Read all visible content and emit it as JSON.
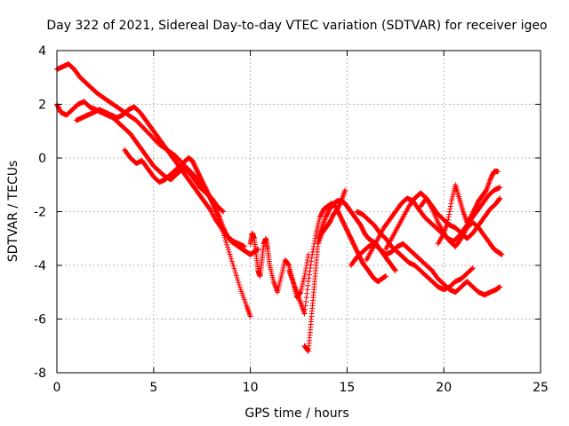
{
  "chart_data": {
    "type": "scatter",
    "title": "Day 322 of 2021, Sidereal Day-to-day VTEC variation (SDTVAR) for receiver igeo",
    "xlabel": "GPS time / hours",
    "ylabel": "SDTVAR / TECUs",
    "xlim": [
      0,
      25
    ],
    "ylim": [
      -8,
      4
    ],
    "xticks": [
      0,
      5,
      10,
      15,
      20,
      25
    ],
    "yticks": [
      -8,
      -6,
      -4,
      -2,
      0,
      2,
      4
    ],
    "grid": true,
    "marker": "plus",
    "color": "#ff0000",
    "series": [
      {
        "x": [
          0.0,
          0.3,
          0.6,
          0.9,
          1.2,
          1.5,
          1.8,
          2.1,
          2.5,
          2.9,
          3.3,
          3.7,
          4.1,
          4.5,
          4.9,
          5.3,
          5.7,
          6.1,
          6.5,
          6.9,
          7.3,
          7.7,
          8.0,
          8.3,
          8.6,
          8.9,
          9.2,
          9.5,
          9.8,
          10.0
        ],
        "y": [
          3.3,
          3.4,
          3.5,
          3.3,
          3.0,
          2.8,
          2.6,
          2.4,
          2.2,
          2.0,
          1.8,
          1.6,
          1.4,
          1.1,
          0.8,
          0.5,
          0.3,
          0.1,
          -0.2,
          -0.5,
          -0.8,
          -1.2,
          -1.6,
          -2.2,
          -2.8,
          -3.5,
          -4.2,
          -4.9,
          -5.5,
          -5.9
        ]
      },
      {
        "x": [
          0.0,
          0.2,
          0.5,
          0.8,
          1.1,
          1.4,
          1.7,
          2.0,
          2.3,
          2.6,
          2.9,
          3.2,
          3.5,
          3.8,
          4.1,
          4.4,
          4.7,
          5.0,
          5.3,
          5.6,
          5.9,
          6.2,
          6.5,
          6.8,
          7.1,
          7.4,
          7.7,
          8.0,
          8.3,
          8.6
        ],
        "y": [
          2.0,
          1.7,
          1.6,
          1.8,
          2.0,
          2.1,
          1.9,
          1.8,
          1.7,
          1.6,
          1.5,
          1.3,
          1.1,
          0.9,
          0.6,
          0.3,
          0.0,
          -0.3,
          -0.5,
          -0.7,
          -0.8,
          -0.6,
          -0.4,
          -0.5,
          -0.8,
          -1.1,
          -1.3,
          -1.5,
          -1.8,
          -2.0
        ]
      },
      {
        "x": [
          1.0,
          1.3,
          1.6,
          1.9,
          2.2,
          2.5,
          2.8,
          3.1,
          3.4,
          3.7,
          4.0,
          4.3,
          4.6,
          4.9,
          5.2,
          5.5,
          5.8,
          6.1,
          6.4,
          6.7,
          7.0,
          7.3,
          7.6,
          7.9,
          8.2,
          8.5,
          8.8,
          9.1,
          9.4,
          9.7
        ],
        "y": [
          1.4,
          1.5,
          1.6,
          1.7,
          1.8,
          1.7,
          1.6,
          1.5,
          1.6,
          1.8,
          1.9,
          1.7,
          1.4,
          1.1,
          0.8,
          0.5,
          0.2,
          -0.1,
          -0.4,
          -0.7,
          -1.0,
          -1.3,
          -1.6,
          -1.9,
          -2.3,
          -2.6,
          -2.9,
          -3.1,
          -3.2,
          -3.3
        ]
      },
      {
        "x": [
          3.5,
          3.8,
          4.1,
          4.4,
          4.7,
          5.0,
          5.3,
          5.6,
          5.9,
          6.2,
          6.5,
          6.8,
          7.0,
          7.2,
          7.4,
          7.6,
          7.8,
          8.0,
          8.2,
          8.4,
          8.6,
          8.8,
          9.0,
          9.2,
          9.4,
          9.6,
          9.8,
          10.0,
          10.2,
          10.4
        ],
        "y": [
          0.3,
          0.0,
          -0.2,
          -0.1,
          -0.4,
          -0.7,
          -0.9,
          -0.8,
          -0.6,
          -0.4,
          -0.2,
          0.0,
          -0.1,
          -0.4,
          -0.7,
          -1.0,
          -1.3,
          -1.6,
          -1.9,
          -2.2,
          -2.6,
          -2.9,
          -3.1,
          -3.2,
          -3.3,
          -3.4,
          -3.5,
          -3.6,
          -3.5,
          -3.4
        ]
      },
      {
        "x": [
          10.0,
          10.1,
          10.2,
          10.3,
          10.4,
          10.5,
          10.6,
          10.7,
          10.8,
          10.9,
          11.0,
          11.2,
          11.4,
          11.6,
          11.8,
          12.0,
          12.2,
          12.4,
          12.6,
          12.8,
          13.0
        ],
        "y": [
          -3.2,
          -2.8,
          -3.0,
          -3.6,
          -4.2,
          -4.4,
          -3.8,
          -3.2,
          -3.0,
          -3.4,
          -4.0,
          -4.6,
          -5.0,
          -4.4,
          -3.8,
          -4.0,
          -4.6,
          -5.2,
          -5.0,
          -4.4,
          -3.6
        ]
      },
      {
        "x": [
          12.0,
          12.2,
          12.4,
          12.6,
          12.8,
          13.0,
          13.2,
          13.4,
          13.6,
          13.8,
          14.0,
          14.2,
          14.4,
          14.6,
          14.8,
          15.0,
          15.2,
          15.4,
          15.6,
          15.8,
          16.0,
          16.2,
          16.4,
          16.6,
          16.8,
          17.0
        ],
        "y": [
          -4.2,
          -4.6,
          -5.0,
          -5.4,
          -5.8,
          -4.6,
          -3.6,
          -2.8,
          -2.2,
          -1.9,
          -1.8,
          -1.7,
          -1.8,
          -2.1,
          -2.4,
          -2.7,
          -3.0,
          -3.3,
          -3.6,
          -3.9,
          -4.1,
          -4.3,
          -4.5,
          -4.6,
          -4.5,
          -4.4
        ]
      },
      {
        "x": [
          12.8,
          13.0,
          13.1,
          13.2,
          13.3,
          13.4,
          13.5,
          13.7,
          13.9,
          14.1,
          14.3,
          14.5,
          14.7,
          14.9
        ],
        "y": [
          -7.0,
          -7.2,
          -6.4,
          -5.6,
          -4.8,
          -4.0,
          -3.2,
          -2.8,
          -2.6,
          -2.4,
          -2.1,
          -1.9,
          -1.6,
          -1.2
        ]
      },
      {
        "x": [
          13.5,
          13.7,
          13.9,
          14.1,
          14.3,
          14.5,
          14.7,
          14.9,
          15.1,
          15.3,
          15.5,
          15.7,
          15.9,
          16.1,
          16.3,
          16.5,
          16.7,
          16.9,
          17.1,
          17.3,
          17.5
        ],
        "y": [
          -3.0,
          -2.6,
          -2.2,
          -1.9,
          -1.7,
          -1.6,
          -1.6,
          -1.7,
          -1.9,
          -2.1,
          -2.3,
          -2.5,
          -2.8,
          -3.0,
          -3.1,
          -3.2,
          -3.4,
          -3.6,
          -3.8,
          -4.0,
          -4.2
        ]
      },
      {
        "x": [
          15.2,
          15.5,
          15.8,
          16.1,
          16.4,
          16.7,
          17.0,
          17.3,
          17.6,
          17.9,
          18.2,
          18.5,
          18.8,
          19.1,
          19.4,
          19.7,
          20.0,
          20.3,
          20.6,
          20.9,
          21.2,
          21.5,
          21.8,
          22.1,
          22.4,
          22.7,
          22.9
        ],
        "y": [
          -4.0,
          -3.7,
          -3.5,
          -3.3,
          -3.2,
          -3.4,
          -3.6,
          -3.5,
          -3.3,
          -3.2,
          -3.4,
          -3.6,
          -3.8,
          -4.0,
          -4.2,
          -4.5,
          -4.7,
          -4.9,
          -5.0,
          -4.8,
          -4.6,
          -4.8,
          -5.0,
          -5.1,
          -5.0,
          -4.9,
          -4.8
        ]
      },
      {
        "x": [
          15.5,
          15.8,
          16.1,
          16.4,
          16.7,
          17.0,
          17.3,
          17.6,
          17.9,
          18.2,
          18.5,
          18.8,
          19.1,
          19.4,
          19.7,
          20.0,
          20.3,
          20.6,
          20.9,
          21.2,
          21.5
        ],
        "y": [
          -2.0,
          -2.1,
          -2.3,
          -2.5,
          -2.8,
          -3.0,
          -3.3,
          -3.5,
          -3.7,
          -3.9,
          -4.0,
          -4.2,
          -4.4,
          -4.6,
          -4.8,
          -4.9,
          -4.8,
          -4.6,
          -4.5,
          -4.3,
          -4.1
        ]
      },
      {
        "x": [
          16.0,
          16.3,
          16.6,
          16.9,
          17.2,
          17.5,
          17.8,
          18.1,
          18.4,
          18.7,
          19.0,
          19.3,
          19.6,
          19.9,
          20.2,
          20.5,
          20.8,
          21.1,
          21.4,
          21.7,
          22.0,
          22.3,
          22.6,
          22.9
        ],
        "y": [
          -3.8,
          -3.4,
          -3.0,
          -2.6,
          -2.3,
          -2.0,
          -1.7,
          -1.5,
          -1.6,
          -1.9,
          -2.2,
          -2.4,
          -2.6,
          -2.8,
          -3.0,
          -3.1,
          -2.9,
          -2.6,
          -2.3,
          -2.0,
          -1.7,
          -1.4,
          -1.2,
          -1.1
        ]
      },
      {
        "x": [
          17.0,
          17.3,
          17.6,
          17.9,
          18.2,
          18.5,
          18.8,
          19.1,
          19.4,
          19.7,
          20.0,
          20.3,
          20.6,
          20.9,
          21.2,
          21.5,
          21.8,
          22.1,
          22.4,
          22.7,
          22.9
        ],
        "y": [
          -3.4,
          -3.0,
          -2.6,
          -2.2,
          -1.8,
          -1.5,
          -1.3,
          -1.5,
          -1.8,
          -2.1,
          -2.3,
          -2.5,
          -2.6,
          -2.8,
          -3.0,
          -2.8,
          -2.5,
          -2.2,
          -1.9,
          -1.7,
          -1.5
        ]
      },
      {
        "x": [
          18.8,
          19.1,
          19.4,
          19.7,
          20.0,
          20.3,
          20.6,
          20.9,
          21.2,
          21.5,
          21.8,
          22.1,
          22.4,
          22.6,
          22.8,
          23.0
        ],
        "y": [
          -1.8,
          -1.5,
          -1.9,
          -2.4,
          -2.8,
          -3.1,
          -3.3,
          -3.0,
          -2.6,
          -2.4,
          -2.6,
          -2.9,
          -3.2,
          -3.4,
          -3.5,
          -3.6
        ]
      },
      {
        "x": [
          19.7,
          20.0,
          20.2,
          20.4,
          20.6,
          20.8,
          21.0,
          21.2,
          21.4,
          21.6,
          21.8,
          22.0,
          22.2,
          22.4,
          22.6,
          22.8
        ],
        "y": [
          -3.2,
          -2.8,
          -2.4,
          -1.6,
          -1.0,
          -1.5,
          -2.0,
          -2.4,
          -2.2,
          -1.9,
          -1.6,
          -1.4,
          -1.2,
          -0.8,
          -0.5,
          -0.5
        ]
      }
    ]
  }
}
